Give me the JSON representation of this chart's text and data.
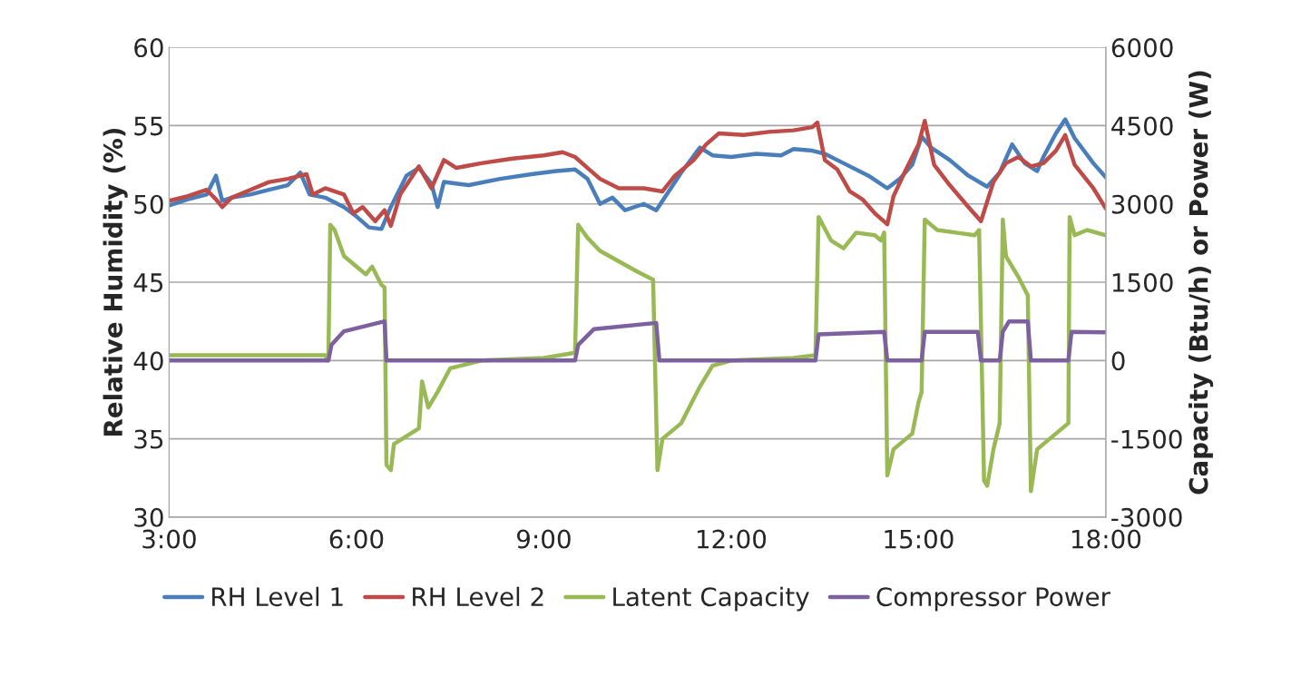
{
  "chart_data": {
    "type": "line",
    "ylabel": "Relative Humidity (%)",
    "y2label": "Capacity (Btu/h) or Power (W)",
    "xlim": [
      3,
      18
    ],
    "xticks": [
      {
        "value": 3,
        "label": "3:00"
      },
      {
        "value": 6,
        "label": "6:00"
      },
      {
        "value": 9,
        "label": "9:00"
      },
      {
        "value": 12,
        "label": "12:00"
      },
      {
        "value": 15,
        "label": "15:00"
      },
      {
        "value": 18,
        "label": "18:00"
      }
    ],
    "ylim": [
      30,
      60
    ],
    "yticks": [
      30,
      35,
      40,
      45,
      50,
      55,
      60
    ],
    "y2lim": [
      -3000,
      6000
    ],
    "y2ticks": [
      -3000,
      -1500,
      0,
      1500,
      3000,
      4500,
      6000
    ],
    "grid": "y",
    "legend": "bottom",
    "marker": "none",
    "line_style": "solid",
    "series": [
      {
        "name": "RH Level 1",
        "color": "#4a7ebb",
        "x": [
          3.0,
          3.3,
          3.6,
          3.75,
          3.85,
          4.0,
          4.3,
          4.6,
          4.9,
          5.1,
          5.25,
          5.5,
          5.8,
          6.0,
          6.2,
          6.4,
          6.55,
          6.8,
          7.0,
          7.2,
          7.3,
          7.4,
          7.8,
          8.3,
          8.8,
          9.2,
          9.5,
          9.7,
          9.9,
          10.1,
          10.3,
          10.6,
          10.8,
          11.0,
          11.2,
          11.5,
          11.7,
          12.0,
          12.4,
          12.8,
          13.0,
          13.3,
          13.5,
          13.8,
          14.2,
          14.5,
          14.7,
          14.9,
          15.05,
          15.2,
          15.5,
          15.8,
          16.1,
          16.3,
          16.5,
          16.7,
          16.9,
          17.0,
          17.2,
          17.35,
          17.5,
          17.8,
          18.0
        ],
        "values": [
          49.9,
          50.3,
          50.6,
          51.8,
          50.2,
          50.4,
          50.6,
          50.9,
          51.2,
          52.0,
          50.6,
          50.4,
          49.8,
          49.2,
          48.5,
          48.4,
          49.8,
          51.8,
          52.3,
          51.3,
          49.8,
          51.4,
          51.2,
          51.6,
          51.9,
          52.1,
          52.2,
          51.6,
          50.0,
          50.4,
          49.6,
          50.0,
          49.6,
          50.8,
          52.0,
          53.6,
          53.1,
          53.0,
          53.2,
          53.1,
          53.5,
          53.4,
          53.2,
          52.6,
          51.8,
          51.0,
          51.6,
          52.5,
          54.3,
          53.6,
          52.8,
          51.8,
          51.1,
          52.0,
          53.8,
          52.6,
          52.1,
          53.0,
          54.5,
          55.4,
          54.2,
          52.6,
          51.7
        ]
      },
      {
        "name": "RH Level 2",
        "color": "#be4b48",
        "x": [
          3.0,
          3.3,
          3.6,
          3.75,
          3.85,
          4.0,
          4.3,
          4.6,
          4.9,
          5.2,
          5.3,
          5.5,
          5.8,
          5.95,
          6.1,
          6.3,
          6.45,
          6.55,
          6.7,
          7.0,
          7.2,
          7.4,
          7.6,
          8.0,
          8.5,
          9.0,
          9.3,
          9.5,
          9.7,
          9.9,
          10.2,
          10.6,
          10.9,
          11.1,
          11.4,
          11.6,
          11.8,
          12.2,
          12.6,
          13.0,
          13.3,
          13.38,
          13.5,
          13.7,
          13.9,
          14.1,
          14.3,
          14.5,
          14.6,
          14.8,
          15.0,
          15.1,
          15.25,
          15.5,
          15.8,
          16.0,
          16.2,
          16.4,
          16.6,
          16.8,
          17.0,
          17.2,
          17.35,
          17.5,
          17.8,
          18.0
        ],
        "values": [
          50.2,
          50.5,
          50.9,
          50.3,
          49.8,
          50.4,
          50.9,
          51.4,
          51.6,
          51.9,
          50.6,
          51.0,
          50.6,
          49.4,
          49.8,
          48.9,
          49.6,
          48.6,
          50.6,
          52.4,
          51.0,
          52.8,
          52.3,
          52.6,
          52.9,
          53.1,
          53.3,
          53.0,
          52.3,
          51.6,
          51.0,
          51.0,
          50.8,
          51.8,
          52.8,
          53.8,
          54.5,
          54.4,
          54.6,
          54.7,
          54.9,
          55.2,
          52.8,
          52.2,
          50.8,
          50.3,
          49.4,
          48.7,
          50.5,
          52.2,
          53.8,
          55.3,
          52.5,
          51.2,
          49.8,
          48.9,
          51.4,
          52.6,
          53.0,
          52.4,
          52.6,
          53.4,
          54.4,
          52.5,
          51.0,
          49.7
        ]
      },
      {
        "name": "Latent Capacity",
        "color": "#98b954",
        "axis": "y2",
        "x": [
          3.0,
          5.5,
          5.55,
          5.58,
          5.65,
          5.8,
          6.0,
          6.15,
          6.25,
          6.4,
          6.45,
          6.48,
          6.55,
          6.6,
          7.0,
          7.05,
          7.15,
          7.3,
          7.5,
          8.0,
          9.0,
          9.5,
          9.55,
          9.7,
          9.9,
          10.2,
          10.5,
          10.75,
          10.82,
          10.9,
          11.2,
          11.5,
          11.7,
          12.0,
          13.0,
          13.35,
          13.4,
          13.6,
          13.8,
          14.0,
          14.3,
          14.4,
          14.45,
          14.5,
          14.6,
          14.9,
          15.0,
          15.05,
          15.1,
          15.3,
          15.6,
          15.9,
          15.97,
          16.05,
          16.1,
          16.2,
          16.3,
          16.35,
          16.4,
          16.6,
          16.75,
          16.8,
          16.9,
          17.2,
          17.4,
          17.42,
          17.5,
          17.7,
          18.0
        ],
        "values": [
          100,
          100,
          0,
          2600,
          2500,
          2000,
          1800,
          1650,
          1800,
          1450,
          1400,
          -2000,
          -2100,
          -1600,
          -1300,
          -400,
          -900,
          -600,
          -150,
          0,
          50,
          150,
          2600,
          2350,
          2100,
          1900,
          1700,
          1550,
          -2100,
          -1500,
          -1200,
          -500,
          -100,
          0,
          50,
          100,
          2750,
          2300,
          2150,
          2450,
          2400,
          2300,
          2450,
          -2200,
          -1700,
          -1400,
          -800,
          -600,
          2700,
          2500,
          2450,
          2400,
          2500,
          -2300,
          -2400,
          -1700,
          -1200,
          2700,
          2000,
          1600,
          1250,
          -2500,
          -1700,
          -1400,
          -1200,
          2750,
          2400,
          2500,
          2400
        ]
      },
      {
        "name": "Compressor Power",
        "color": "#7d60a0",
        "axis": "y2",
        "x": [
          3.0,
          5.55,
          5.6,
          5.8,
          6.45,
          6.48,
          9.5,
          9.55,
          9.8,
          10.8,
          10.85,
          13.35,
          13.4,
          14.45,
          14.5,
          15.05,
          15.1,
          15.95,
          16.0,
          16.3,
          16.35,
          16.45,
          16.75,
          16.8,
          17.4,
          17.45,
          18.0
        ],
        "values": [
          0,
          0,
          300,
          560,
          750,
          0,
          0,
          300,
          600,
          720,
          0,
          0,
          500,
          550,
          0,
          0,
          550,
          550,
          0,
          0,
          550,
          750,
          750,
          0,
          0,
          550,
          540
        ]
      }
    ]
  }
}
